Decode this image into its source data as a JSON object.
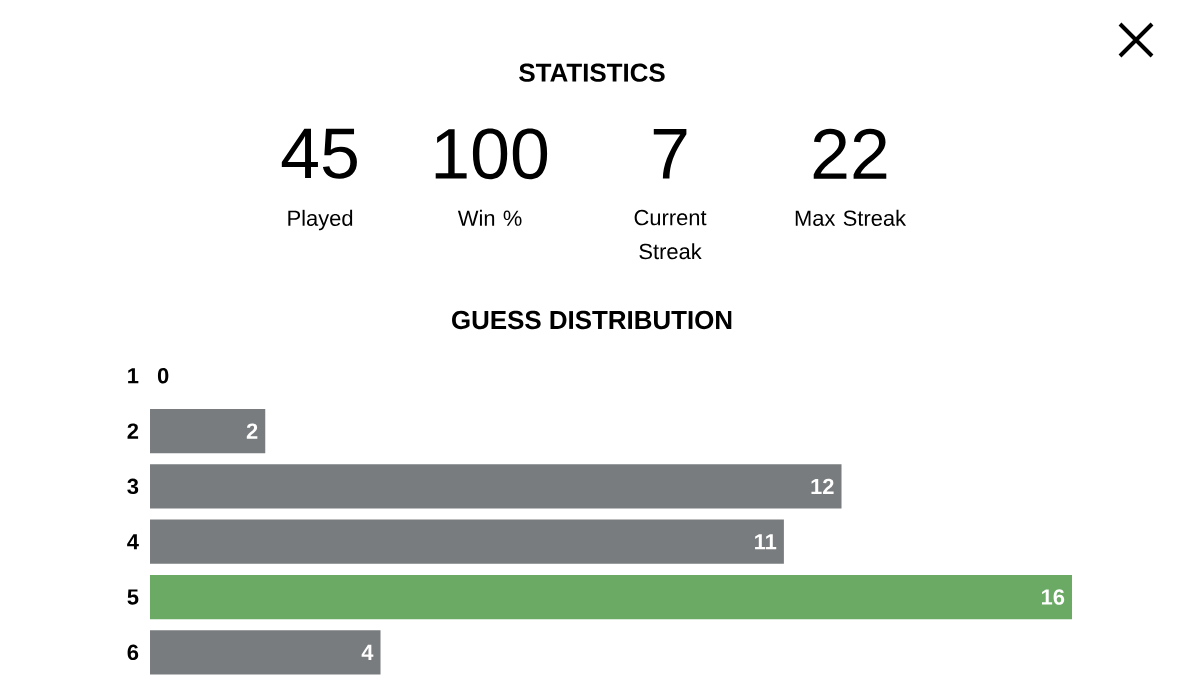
{
  "chart_data": [
    {
      "type": "other",
      "title": "STATISTICS",
      "annotations": [
        "45",
        "Played",
        "100",
        "Win %",
        "7",
        "Current Streak",
        "22",
        "Max Streak"
      ]
    },
    {
      "type": "bar",
      "orientation": "horizontal",
      "title": "GUESS DISTRIBUTION",
      "categories": [
        "1",
        "2",
        "3",
        "4",
        "5",
        "6"
      ],
      "values": [
        0,
        2,
        12,
        11,
        16,
        4
      ],
      "colors": [
        "#787c7e",
        "#787c7e",
        "#787c7e",
        "#787c7e",
        "#6aaa64",
        "#787c7e"
      ],
      "data_labels": true,
      "tick_labels": "y"
    }
  ]
}
